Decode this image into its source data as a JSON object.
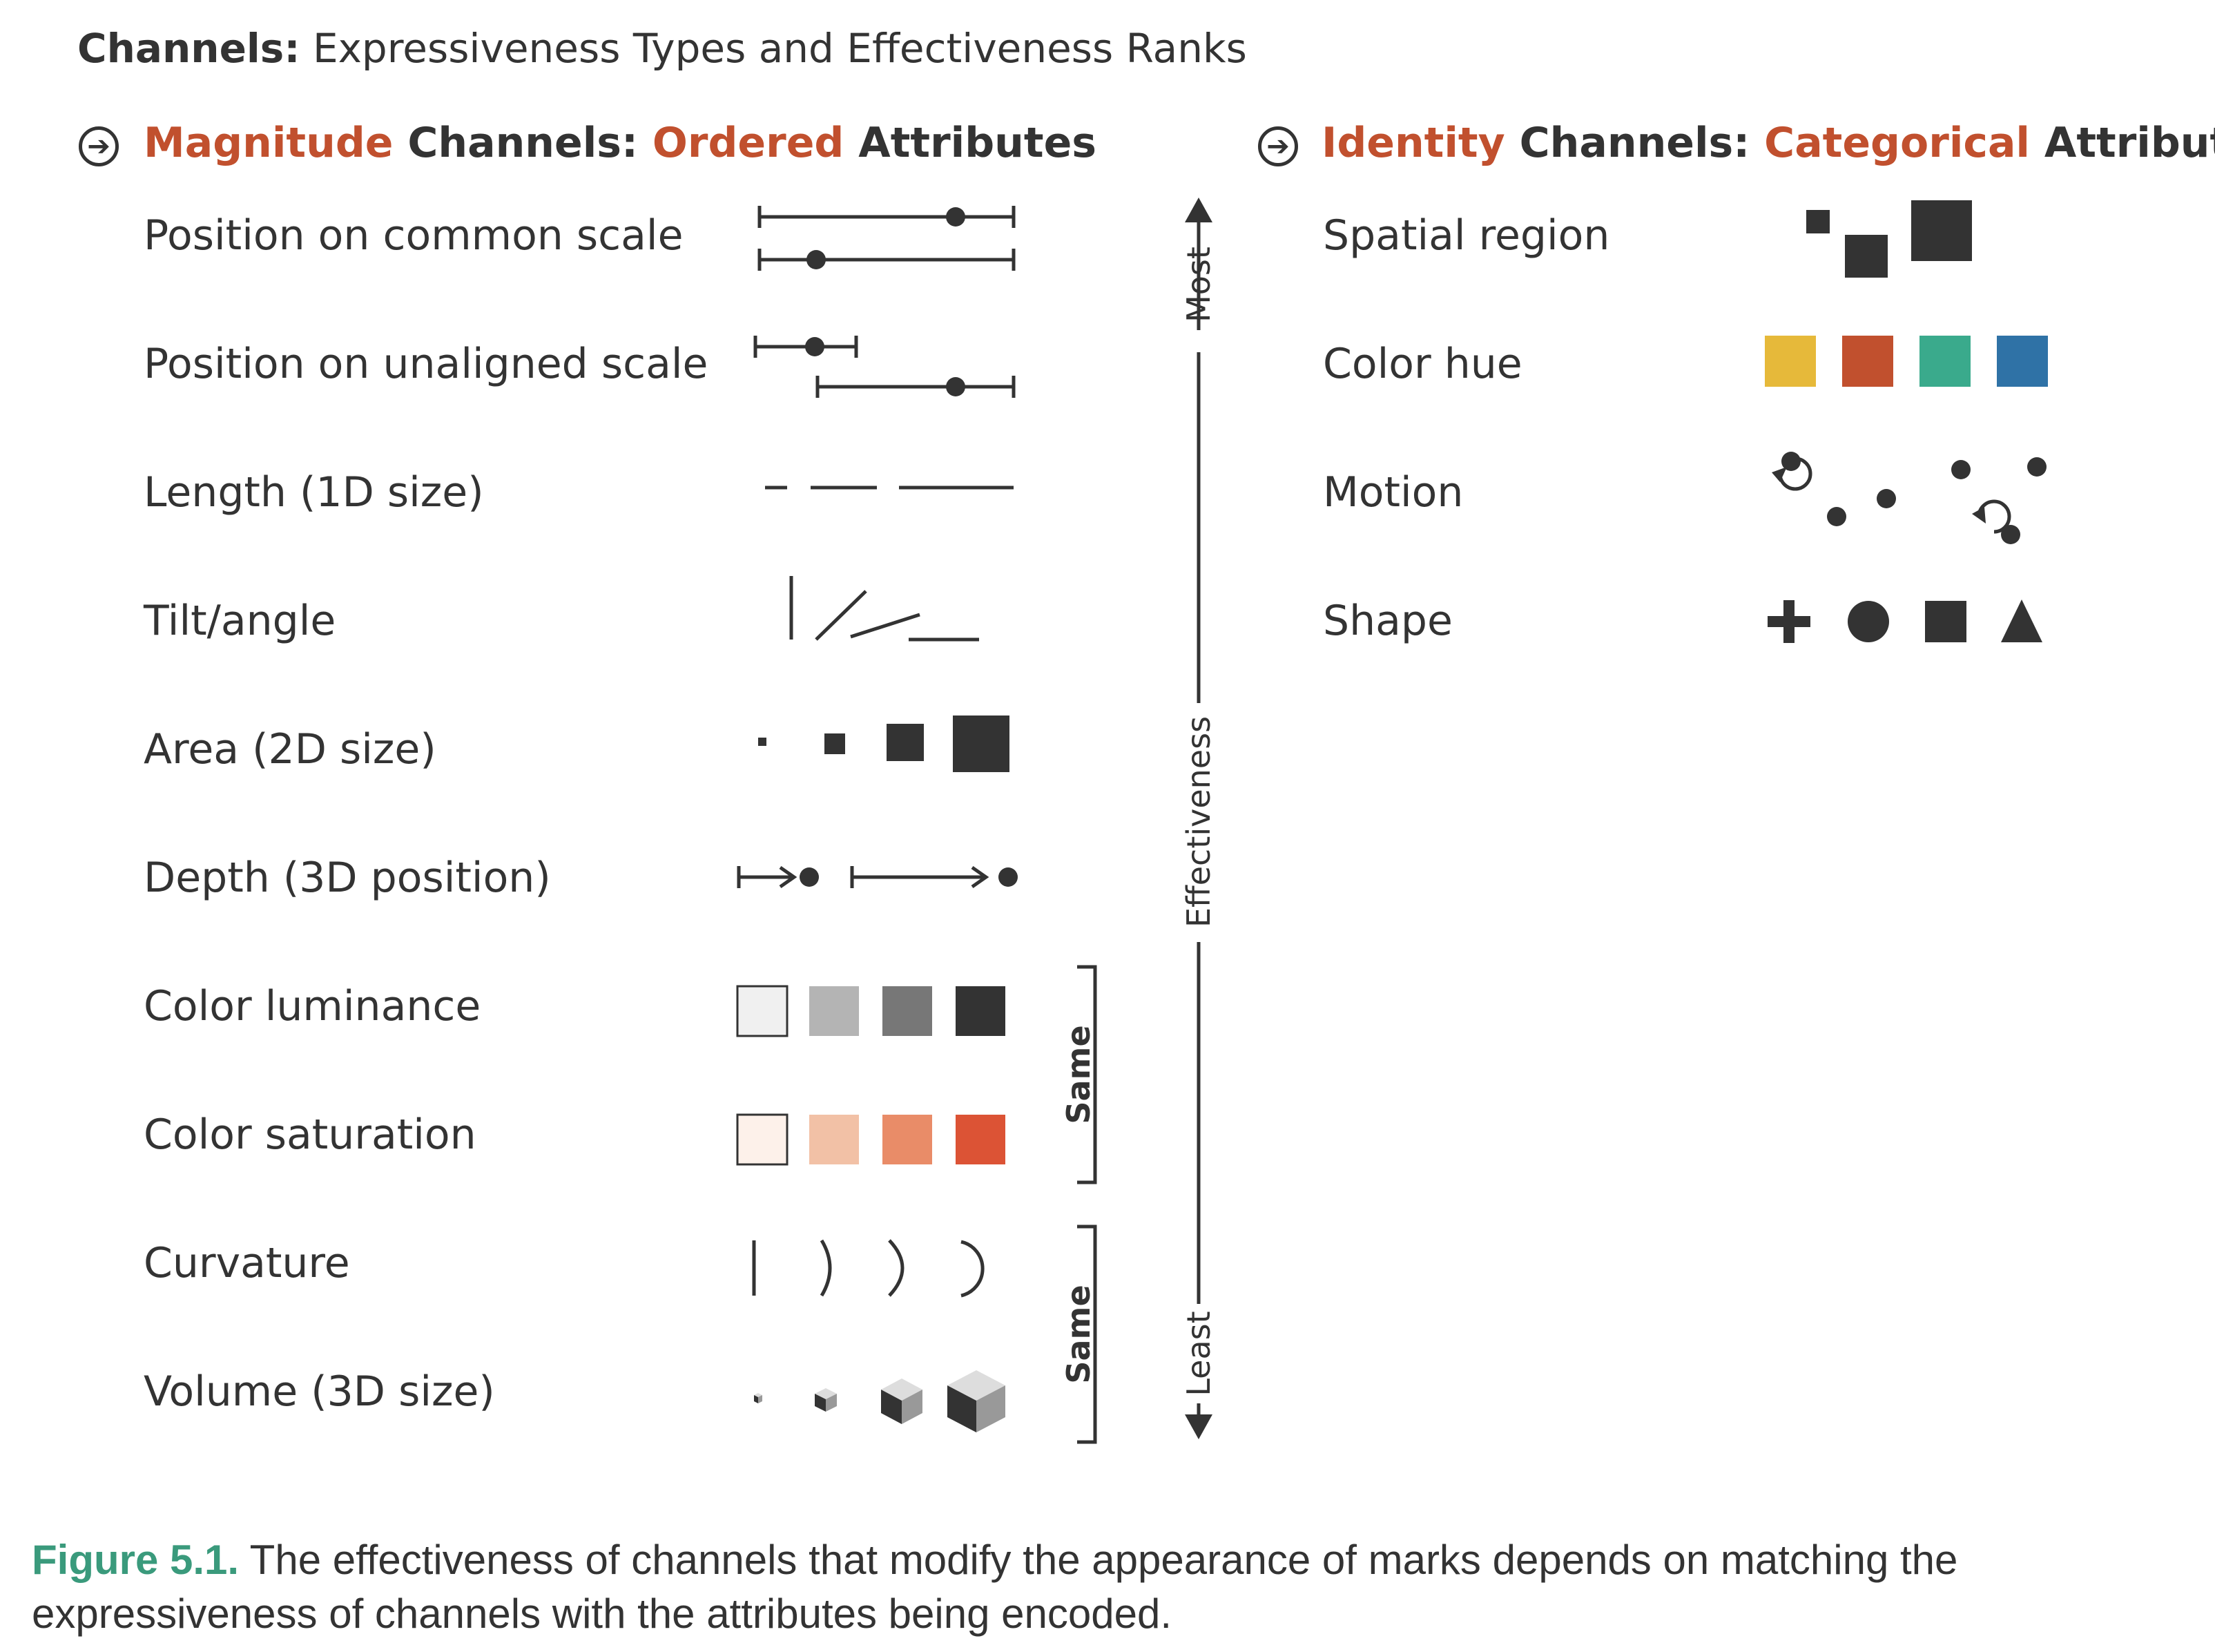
{
  "title": {
    "bold": "Channels:",
    "rest": " Expressiveness Types and Effectiveness Ranks"
  },
  "magnitude": {
    "word1": "Magnitude",
    "word2": " Channels: ",
    "word3": "Ordered",
    "word4": " Attributes",
    "items": [
      "Position on common scale",
      "Position on unaligned scale",
      "Length (1D size)",
      "Tilt/angle",
      "Area (2D size)",
      "Depth (3D position)",
      "Color luminance",
      "Color saturation",
      "Curvature",
      "Volume (3D size)"
    ]
  },
  "identity": {
    "word1": "Identity",
    "word2": " Channels: ",
    "word3": "Categorical",
    "word4": " Attributes",
    "items": [
      "Spatial region",
      "Color hue",
      "Motion",
      "Shape"
    ]
  },
  "effectiveness_axis": {
    "top": "Most",
    "middle": "Effectiveness",
    "bottom": "Least"
  },
  "brackets": {
    "first": "Same",
    "second": "Same"
  },
  "colors": {
    "accent": "#c1502e",
    "hue": [
      "#e6b93a",
      "#c1502e",
      "#3aaa8c",
      "#2f72a6"
    ],
    "luminance": [
      "#f0f0f0",
      "#b4b4b4",
      "#777777",
      "#333333"
    ],
    "saturation": [
      "#fdf1ea",
      "#f2c1a6",
      "#e98c68",
      "#dc5335"
    ],
    "figure_label": "#3a9a7c"
  },
  "caption": {
    "label": "Figure 5.1.",
    "text": " The effectiveness of channels that modify the appearance of marks depends on matching the expressiveness of channels with the attributes being encoded."
  }
}
